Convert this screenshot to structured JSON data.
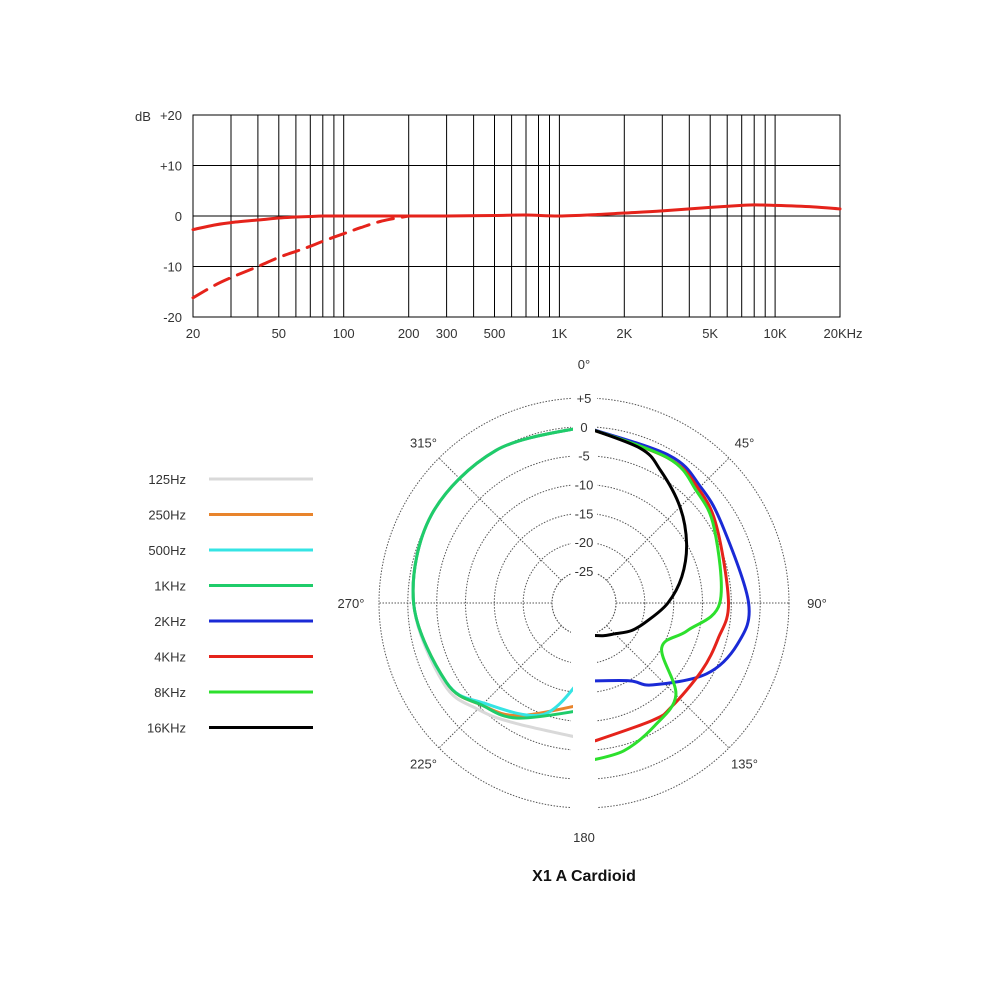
{
  "colors": {
    "grid": "#000000",
    "polar_grid": "#555555",
    "response": "#e5231b"
  },
  "chart_data": [
    {
      "type": "line",
      "x_scale": "log",
      "xlim": [
        20,
        20000
      ],
      "ylim": [
        -20,
        20
      ],
      "ylabel": "dB",
      "x_ticks": [
        {
          "value": 20,
          "label": "20"
        },
        {
          "value": 50,
          "label": "50"
        },
        {
          "value": 100,
          "label": "100"
        },
        {
          "value": 200,
          "label": "200"
        },
        {
          "value": 300,
          "label": "300"
        },
        {
          "value": 500,
          "label": "500"
        },
        {
          "value": 1000,
          "label": "1K"
        },
        {
          "value": 2000,
          "label": "2K"
        },
        {
          "value": 5000,
          "label": "5K"
        },
        {
          "value": 10000,
          "label": "10K"
        },
        {
          "value": 20000,
          "label": "20KHz"
        }
      ],
      "y_ticks": [
        {
          "value": 20,
          "label": "+20"
        },
        {
          "value": 10,
          "label": "+10"
        },
        {
          "value": 0,
          "label": "0"
        },
        {
          "value": -10,
          "label": "-10"
        },
        {
          "value": -20,
          "label": "-20"
        }
      ],
      "grid": true,
      "series": [
        {
          "style": "solid",
          "color": "#e5231b",
          "x": [
            20,
            25,
            30,
            40,
            50,
            60,
            70,
            80,
            100,
            150,
            200,
            300,
            500,
            700,
            1000,
            1500,
            2000,
            3000,
            5000,
            7000,
            8000,
            10000,
            15000,
            20000
          ],
          "y": [
            -2.7,
            -1.8,
            -1.3,
            -0.8,
            -0.4,
            -0.2,
            -0.1,
            0,
            0,
            0,
            0,
            0,
            0.1,
            0.2,
            0,
            0.3,
            0.6,
            1.0,
            1.7,
            2.1,
            2.2,
            2.1,
            1.8,
            1.4
          ]
        },
        {
          "style": "dashed",
          "color": "#e5231b",
          "x": [
            20,
            25,
            30,
            40,
            50,
            60,
            70,
            80,
            100,
            120,
            150,
            200
          ],
          "y": [
            -16.2,
            -13.8,
            -12.2,
            -10,
            -8.2,
            -7,
            -6,
            -5,
            -3.5,
            -2.3,
            -1,
            0
          ]
        }
      ]
    },
    {
      "type": "polar",
      "title": "X1 A Cardioid",
      "r_ticks": [
        "+5",
        "0",
        "-5",
        "-10",
        "-15",
        "-20",
        "-25"
      ],
      "angle_labels": [
        {
          "angle": 0,
          "label": "0°"
        },
        {
          "angle": 45,
          "label": "45°"
        },
        {
          "angle": 90,
          "label": "90°"
        },
        {
          "angle": 135,
          "label": "135°"
        },
        {
          "angle": 180,
          "label": "180"
        },
        {
          "angle": 225,
          "label": "225°"
        },
        {
          "angle": 270,
          "label": "270°"
        },
        {
          "angle": 315,
          "label": "315°"
        }
      ],
      "legend_position": "left",
      "series": [
        {
          "name": "125Hz",
          "color": "#d9d9d9",
          "side": "left",
          "angles": [
            180,
            210,
            225,
            240,
            270,
            300,
            330,
            360
          ],
          "db": [
            -7,
            -6.5,
            -4.5,
            -2.5,
            -1,
            0,
            0,
            0
          ]
        },
        {
          "name": "250Hz",
          "color": "#e8842c",
          "side": "left",
          "angles": [
            180,
            210,
            225,
            240,
            270,
            300,
            330,
            360
          ],
          "db": [
            -13,
            -8,
            -5.5,
            -3,
            -1,
            0,
            0,
            0
          ]
        },
        {
          "name": "500Hz",
          "color": "#35e4e4",
          "side": "left",
          "angles": [
            180,
            200,
            225,
            240,
            270,
            300,
            330,
            360
          ],
          "db": [
            -18,
            -10,
            -6,
            -3,
            -1,
            0,
            0,
            0
          ]
        },
        {
          "name": "1KHz",
          "color": "#1fcc6a",
          "side": "left",
          "angles": [
            180,
            210,
            225,
            240,
            270,
            300,
            330,
            360
          ],
          "db": [
            -12,
            -7.5,
            -5.5,
            -3,
            -1,
            0,
            0,
            0
          ]
        },
        {
          "name": "2KHz",
          "color": "#1a2ad6",
          "side": "right",
          "angles": [
            0,
            30,
            45,
            60,
            90,
            105,
            120,
            140,
            150,
            180
          ],
          "db": [
            0,
            -1,
            -2,
            -3,
            -2,
            -3,
            -6,
            -12,
            -15,
            -17
          ]
        },
        {
          "name": "4KHz",
          "color": "#e5231b",
          "side": "right",
          "angles": [
            0,
            30,
            45,
            60,
            90,
            105,
            120,
            140,
            150,
            180
          ],
          "db": [
            0,
            -1.5,
            -2.5,
            -4,
            -5.5,
            -6.5,
            -7,
            -7,
            -7,
            -6
          ]
        },
        {
          "name": "8KHz",
          "color": "#2de02d",
          "side": "right",
          "angles": [
            0,
            30,
            45,
            60,
            90,
            105,
            120,
            135,
            150,
            165,
            180
          ],
          "db": [
            0,
            -1.5,
            -3,
            -4.5,
            -7,
            -12,
            -15,
            -8,
            -6,
            -4,
            -3
          ]
        },
        {
          "name": "16KHz",
          "color": "#000000",
          "side": "right",
          "angles": [
            0,
            20,
            30,
            45,
            60,
            75,
            90,
            105,
            120,
            135,
            150,
            180
          ],
          "db": [
            0,
            -2,
            -4,
            -7,
            -10,
            -13,
            -16,
            -19,
            -21,
            -23,
            -24,
            -25
          ]
        }
      ]
    }
  ]
}
